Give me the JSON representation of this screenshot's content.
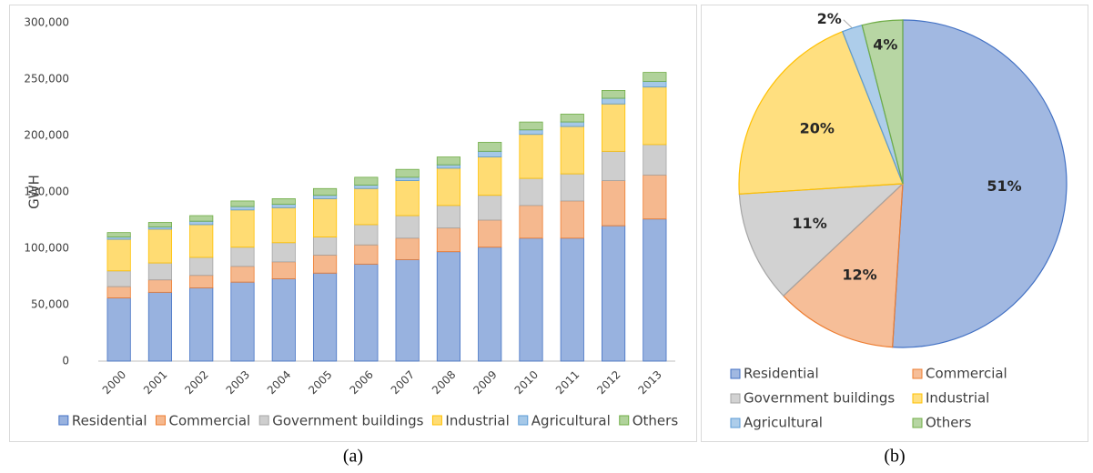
{
  "chart_data": [
    {
      "type": "bar",
      "stacked": true,
      "ylabel": "GWH",
      "caption": "(a)",
      "grid": false,
      "legend": "bottom",
      "categories": [
        "2000",
        "2001",
        "2002",
        "2003",
        "2004",
        "2005",
        "2006",
        "2007",
        "2008",
        "2009",
        "2010",
        "2011",
        "2012",
        "2013"
      ],
      "series": [
        {
          "name": "Residential",
          "color": "#4472c4",
          "values": [
            56000,
            61000,
            65000,
            70000,
            73000,
            78000,
            86000,
            90000,
            97000,
            101000,
            109000,
            109000,
            120000,
            126000
          ]
        },
        {
          "name": "Commercial",
          "color": "#ed7d31",
          "values": [
            10000,
            11000,
            11000,
            14000,
            15000,
            16000,
            17000,
            19000,
            21000,
            24000,
            29000,
            33000,
            40000,
            39000
          ]
        },
        {
          "name": "Government buildings",
          "color": "#a5a5a5",
          "values": [
            14000,
            15000,
            16000,
            17000,
            17000,
            16000,
            18000,
            20000,
            20000,
            22000,
            24000,
            24000,
            26000,
            27000
          ]
        },
        {
          "name": "Industrial",
          "color": "#ffc000",
          "values": [
            28000,
            30000,
            29000,
            33000,
            31000,
            34000,
            32000,
            31000,
            33000,
            34000,
            39000,
            42000,
            42000,
            51000
          ]
        },
        {
          "name": "Agricultural",
          "color": "#5b9bd5",
          "values": [
            2000,
            2000,
            3000,
            3000,
            3000,
            3000,
            3000,
            3000,
            3000,
            5000,
            4000,
            4000,
            5000,
            5000
          ]
        },
        {
          "name": "Others",
          "color": "#70ad47",
          "values": [
            4000,
            4000,
            5000,
            5000,
            5000,
            6000,
            7000,
            7000,
            7000,
            8000,
            7000,
            7000,
            7000,
            8000
          ]
        }
      ],
      "ylim": [
        0,
        300000
      ],
      "yticks": [
        0,
        {
          "value": 50000,
          "label": "50,000"
        },
        {
          "value": 100000,
          "label": "100,000"
        },
        {
          "value": 150000,
          "label": "150,000"
        },
        {
          "value": 200000,
          "label": "200,000"
        },
        {
          "value": 250000,
          "label": "250,000"
        },
        {
          "value": 300000,
          "label": "300,000"
        }
      ]
    },
    {
      "type": "pie",
      "caption": "(b)",
      "legend": "bottom",
      "categories": [
        "Residential",
        "Commercial",
        "Government buildings",
        "Industrial",
        "Agricultural",
        "Others"
      ],
      "values": [
        51,
        12,
        11,
        20,
        2,
        4
      ],
      "value_labels": [
        "51%",
        "12%",
        "11%",
        "20%",
        "2%",
        "4%"
      ],
      "colors": [
        "#4472c4",
        "#ed7d31",
        "#a5a5a5",
        "#ffc000",
        "#5b9bd5",
        "#70ad47"
      ]
    }
  ]
}
